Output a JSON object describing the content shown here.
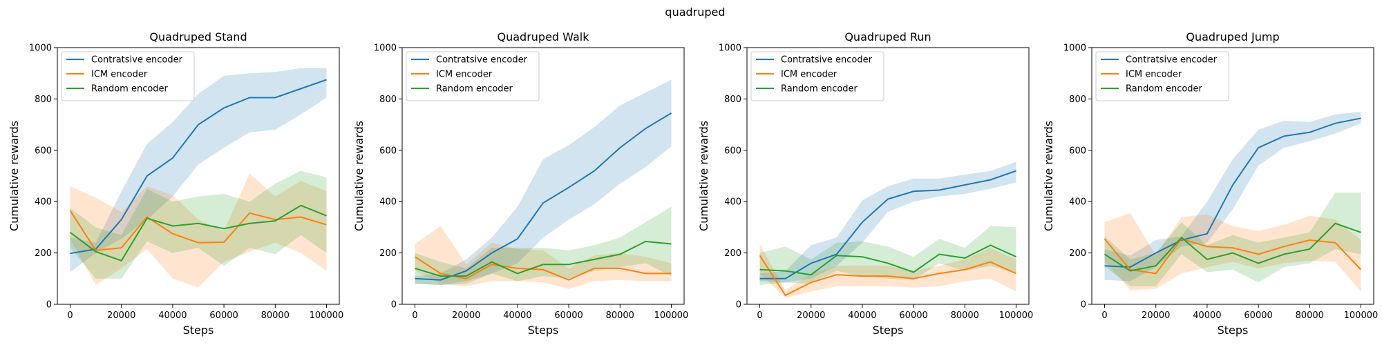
{
  "figure": {
    "title": "quadruped"
  },
  "chart_data": [
    {
      "type": "line",
      "title": "Quadruped Stand",
      "xlabel": "Steps",
      "ylabel": "Cumulative rewards",
      "x": [
        0,
        10000,
        20000,
        30000,
        40000,
        50000,
        60000,
        70000,
        80000,
        90000,
        100000
      ],
      "xticks": [
        0,
        20000,
        40000,
        60000,
        80000,
        100000
      ],
      "yticks": [
        0,
        200,
        400,
        600,
        800,
        1000
      ],
      "ylim": [
        0,
        1000
      ],
      "xlim": [
        -5000,
        105000
      ],
      "legend": "top-left",
      "series": [
        {
          "name": "Contratsive encoder",
          "color": "#1f77b4",
          "values": [
            198,
            215,
            330,
            500,
            570,
            700,
            765,
            805,
            805,
            840,
            875
          ],
          "lower": [
            125,
            200,
            255,
            330,
            420,
            545,
            610,
            670,
            680,
            740,
            805
          ],
          "upper": [
            260,
            240,
            440,
            625,
            710,
            820,
            890,
            900,
            905,
            920,
            920
          ]
        },
        {
          "name": "ICM encoder",
          "color": "#ff7f0e",
          "values": [
            365,
            210,
            220,
            340,
            275,
            240,
            242,
            355,
            330,
            340,
            310
          ],
          "lower": [
            255,
            75,
            140,
            215,
            100,
            65,
            165,
            205,
            240,
            200,
            130
          ],
          "upper": [
            460,
            415,
            360,
            460,
            425,
            330,
            285,
            510,
            420,
            480,
            440
          ]
        },
        {
          "name": "Random encoder",
          "color": "#2ca02c",
          "values": [
            280,
            205,
            170,
            335,
            305,
            315,
            295,
            315,
            325,
            385,
            345
          ],
          "lower": [
            220,
            100,
            100,
            245,
            200,
            220,
            150,
            220,
            195,
            270,
            200
          ],
          "upper": [
            375,
            300,
            270,
            450,
            400,
            420,
            430,
            400,
            470,
            520,
            495
          ]
        }
      ]
    },
    {
      "type": "line",
      "title": "Quadruped Walk",
      "xlabel": "Steps",
      "ylabel": "Cumulative rewards",
      "x": [
        0,
        10000,
        20000,
        30000,
        40000,
        50000,
        60000,
        70000,
        80000,
        90000,
        100000
      ],
      "xticks": [
        0,
        20000,
        40000,
        60000,
        80000,
        100000
      ],
      "yticks": [
        0,
        200,
        400,
        600,
        800,
        1000
      ],
      "ylim": [
        0,
        1000
      ],
      "xlim": [
        -5000,
        105000
      ],
      "legend": "top-left",
      "series": [
        {
          "name": "Contratsive encoder",
          "color": "#1f77b4",
          "values": [
            100,
            95,
            130,
            200,
            255,
            395,
            455,
            520,
            610,
            685,
            745
          ],
          "lower": [
            80,
            75,
            90,
            120,
            160,
            260,
            330,
            390,
            470,
            535,
            615
          ],
          "upper": [
            110,
            120,
            175,
            260,
            380,
            565,
            620,
            690,
            775,
            825,
            875
          ]
        },
        {
          "name": "ICM encoder",
          "color": "#ff7f0e",
          "values": [
            185,
            120,
            100,
            155,
            140,
            135,
            95,
            140,
            140,
            120,
            120
          ],
          "lower": [
            130,
            80,
            70,
            90,
            90,
            85,
            60,
            90,
            95,
            90,
            90
          ],
          "upper": [
            235,
            305,
            155,
            240,
            215,
            210,
            140,
            190,
            200,
            185,
            160
          ]
        },
        {
          "name": "Random encoder",
          "color": "#2ca02c",
          "values": [
            140,
            110,
            110,
            165,
            120,
            155,
            155,
            175,
            195,
            245,
            235
          ],
          "lower": [
            80,
            75,
            80,
            120,
            90,
            110,
            100,
            130,
            145,
            160,
            110
          ],
          "upper": [
            200,
            165,
            140,
            220,
            220,
            220,
            210,
            230,
            260,
            320,
            380
          ]
        }
      ]
    },
    {
      "type": "line",
      "title": "Quadruped Run",
      "xlabel": "Steps",
      "ylabel": "Cumulative rewards",
      "x": [
        0,
        10000,
        20000,
        30000,
        40000,
        50000,
        60000,
        70000,
        80000,
        90000,
        100000
      ],
      "xticks": [
        0,
        20000,
        40000,
        60000,
        80000,
        100000
      ],
      "yticks": [
        0,
        200,
        400,
        600,
        800,
        1000
      ],
      "ylim": [
        0,
        1000
      ],
      "xlim": [
        -5000,
        105000
      ],
      "legend": "top-left",
      "series": [
        {
          "name": "Contratsive encoder",
          "color": "#1f77b4",
          "values": [
            100,
            100,
            160,
            195,
            320,
            410,
            440,
            445,
            465,
            485,
            520
          ],
          "lower": [
            90,
            85,
            100,
            150,
            240,
            360,
            400,
            420,
            430,
            450,
            475
          ],
          "upper": [
            120,
            130,
            230,
            260,
            405,
            460,
            490,
            490,
            505,
            520,
            555
          ]
        },
        {
          "name": "ICM encoder",
          "color": "#ff7f0e",
          "values": [
            190,
            35,
            85,
            115,
            110,
            110,
            100,
            120,
            135,
            165,
            120
          ],
          "lower": [
            120,
            25,
            50,
            70,
            70,
            70,
            65,
            70,
            90,
            100,
            50
          ],
          "upper": [
            235,
            55,
            120,
            150,
            150,
            150,
            130,
            150,
            175,
            220,
            175
          ]
        },
        {
          "name": "Random encoder",
          "color": "#2ca02c",
          "values": [
            135,
            130,
            115,
            190,
            185,
            160,
            125,
            195,
            180,
            230,
            185
          ],
          "lower": [
            75,
            85,
            80,
            130,
            110,
            100,
            95,
            160,
            130,
            150,
            120
          ],
          "upper": [
            200,
            225,
            175,
            240,
            245,
            225,
            185,
            255,
            220,
            305,
            300
          ]
        }
      ]
    },
    {
      "type": "line",
      "title": "Quadruped Jump",
      "xlabel": "Steps",
      "ylabel": "Cumulative rewards",
      "x": [
        0,
        10000,
        20000,
        30000,
        40000,
        50000,
        60000,
        70000,
        80000,
        90000,
        100000
      ],
      "xticks": [
        0,
        20000,
        40000,
        60000,
        80000,
        100000
      ],
      "yticks": [
        0,
        200,
        400,
        600,
        800,
        1000
      ],
      "ylim": [
        0,
        1000
      ],
      "xlim": [
        -5000,
        105000
      ],
      "legend": "top-left",
      "series": [
        {
          "name": "Contratsive encoder",
          "color": "#1f77b4",
          "values": [
            150,
            145,
            200,
            250,
            275,
            465,
            610,
            655,
            670,
            705,
            725
          ],
          "lower": [
            95,
            90,
            145,
            225,
            240,
            370,
            540,
            610,
            635,
            665,
            705
          ],
          "upper": [
            215,
            190,
            250,
            265,
            400,
            565,
            680,
            715,
            710,
            740,
            750
          ]
        },
        {
          "name": "ICM encoder",
          "color": "#ff7f0e",
          "values": [
            255,
            135,
            120,
            255,
            225,
            220,
            195,
            225,
            250,
            240,
            135
          ],
          "lower": [
            170,
            55,
            60,
            120,
            145,
            165,
            140,
            160,
            170,
            165,
            50
          ],
          "upper": [
            320,
            355,
            190,
            340,
            350,
            305,
            285,
            310,
            345,
            330,
            250
          ]
        },
        {
          "name": "Random encoder",
          "color": "#2ca02c",
          "values": [
            195,
            130,
            150,
            260,
            175,
            200,
            160,
            195,
            215,
            315,
            280
          ],
          "lower": [
            150,
            70,
            70,
            195,
            125,
            135,
            85,
            145,
            160,
            215,
            195
          ],
          "upper": [
            265,
            175,
            200,
            320,
            230,
            270,
            240,
            260,
            280,
            435,
            435
          ]
        }
      ]
    }
  ]
}
